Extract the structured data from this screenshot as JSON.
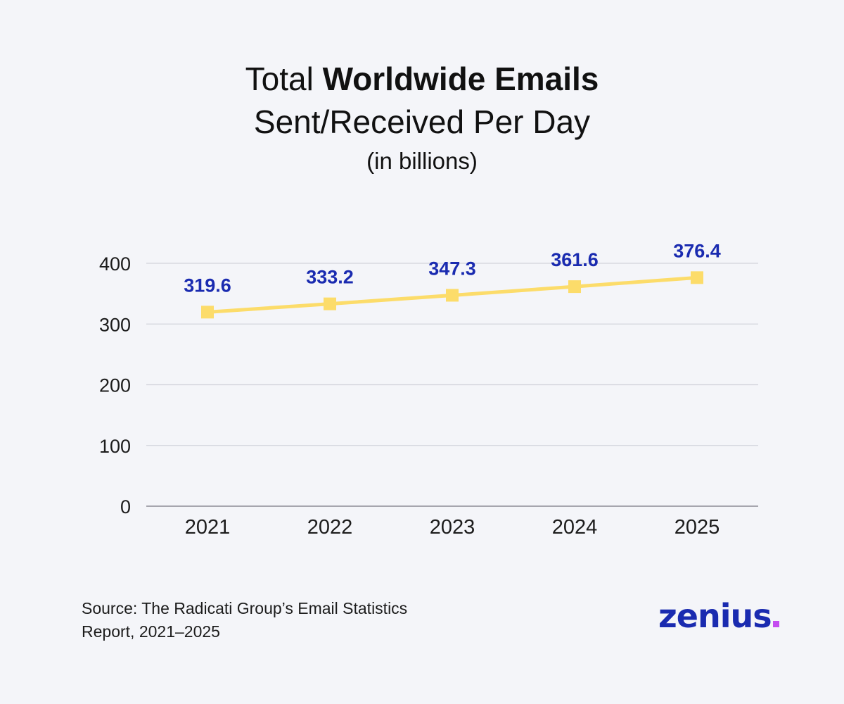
{
  "title": {
    "line1_regular": "Total",
    "line1_bold": "Worldwide Emails",
    "line2": "Sent/Received Per Day",
    "line3": "(in billions)"
  },
  "chart_data": {
    "type": "line",
    "categories": [
      "2021",
      "2022",
      "2023",
      "2024",
      "2025"
    ],
    "series": [
      {
        "values": [
          319.6,
          333.2,
          347.3,
          361.6,
          376.4
        ]
      }
    ],
    "data_labels": [
      "319.6",
      "333.2",
      "347.3",
      "361.6",
      "376.4"
    ],
    "ylim": [
      0,
      400
    ],
    "yticks": [
      "0",
      "100",
      "200",
      "300",
      "400"
    ],
    "grid": true,
    "line_color": "#fcdc6a",
    "label_color": "#1a2bb0"
  },
  "source": {
    "line1": "Source: The Radicati Group’s Email Statistics",
    "line2": "Report, 2021–2025"
  },
  "logo": {
    "text": "zenius",
    "dot_color": "#c44cf0",
    "color": "#1a2bb0"
  }
}
